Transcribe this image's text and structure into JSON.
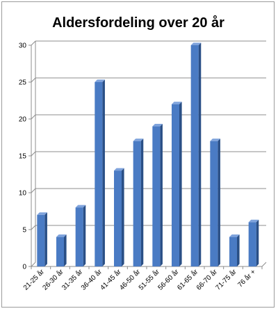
{
  "chart_data": {
    "type": "bar",
    "title": "Aldersfordeling over 20 år",
    "categories": [
      "21-25 år",
      "26-30 år",
      "31-35 år",
      "36-40 år",
      "41-45 år",
      "46-50 år",
      "51-55 år",
      "56-60 år",
      "61-65 år",
      "66-70 år",
      "71-75 år",
      "76 år +"
    ],
    "values": [
      7,
      4,
      8,
      25,
      13,
      17,
      19,
      22,
      30,
      17,
      4,
      6
    ],
    "ylim": [
      0,
      30
    ],
    "yticks": [
      "0",
      "5",
      "10",
      "15",
      "20",
      "25",
      "30"
    ],
    "grid": true,
    "legend": "none",
    "colors": {
      "bar_front": "#4a7bc4",
      "bar_side": "#2a4f86",
      "bar_top": "#7fa3dc",
      "grid": "#8c8c8c",
      "axis": "#8c8c8c"
    }
  }
}
